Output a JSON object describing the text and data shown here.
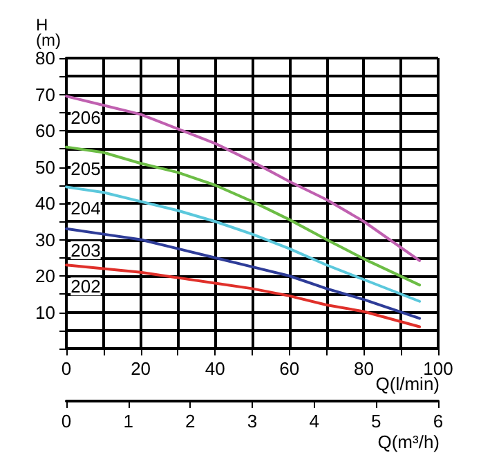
{
  "chart_data": {
    "type": "line",
    "xlabel": "Q(l/min)",
    "ylabel": "H\n(m)",
    "x2label": "Q(m³/h)",
    "x": [
      0,
      10,
      20,
      30,
      40,
      50,
      60,
      70,
      80,
      95
    ],
    "series": [
      {
        "name": "206",
        "color": "#c060b0",
        "values": [
          69.5,
          67,
          64.5,
          60.5,
          56.5,
          51.5,
          46,
          41,
          35,
          24.2
        ]
      },
      {
        "name": "205",
        "color": "#6cbd45",
        "values": [
          55.5,
          54,
          51,
          48.5,
          45,
          40.5,
          35.5,
          30,
          24.7,
          17.5
        ]
      },
      {
        "name": "204",
        "color": "#5bc8dc",
        "values": [
          44.5,
          43,
          40.5,
          38,
          35,
          31.5,
          27.5,
          23,
          19,
          13
        ]
      },
      {
        "name": "203",
        "color": "#2e3c98",
        "values": [
          33,
          31.5,
          30,
          27.5,
          25,
          22.5,
          20,
          16.5,
          13.5,
          8.3
        ]
      },
      {
        "name": "202",
        "color": "#e0302a",
        "values": [
          23,
          22,
          21,
          19.5,
          18,
          16.5,
          14.5,
          12,
          10.2,
          6
        ]
      }
    ],
    "xlim": [
      0,
      100
    ],
    "xticks": [
      0,
      {
        "value": 10,
        "label": null
      },
      20,
      {
        "value": 30,
        "label": null
      },
      40,
      {
        "value": 50,
        "label": null
      },
      60,
      {
        "value": 70,
        "label": null
      },
      80,
      {
        "value": 90,
        "label": null
      },
      100
    ],
    "ylim": [
      0,
      80
    ],
    "yticks": [
      {
        "value": 0,
        "label": null
      },
      {
        "value": 5,
        "label": null
      },
      10,
      {
        "value": 15,
        "label": null
      },
      20,
      {
        "value": 25,
        "label": null
      },
      30,
      {
        "value": 35,
        "label": null
      },
      40,
      {
        "value": 45,
        "label": null
      },
      50,
      {
        "value": 55,
        "label": null
      },
      60,
      {
        "value": 65,
        "label": null
      },
      70,
      {
        "value": 75,
        "label": null
      },
      80
    ],
    "x2lim": [
      0,
      6
    ],
    "x2ticks": [
      0,
      1,
      2,
      3,
      4,
      5,
      6
    ],
    "grid": true,
    "legend": false,
    "marker": "none",
    "line_style": "solid"
  }
}
